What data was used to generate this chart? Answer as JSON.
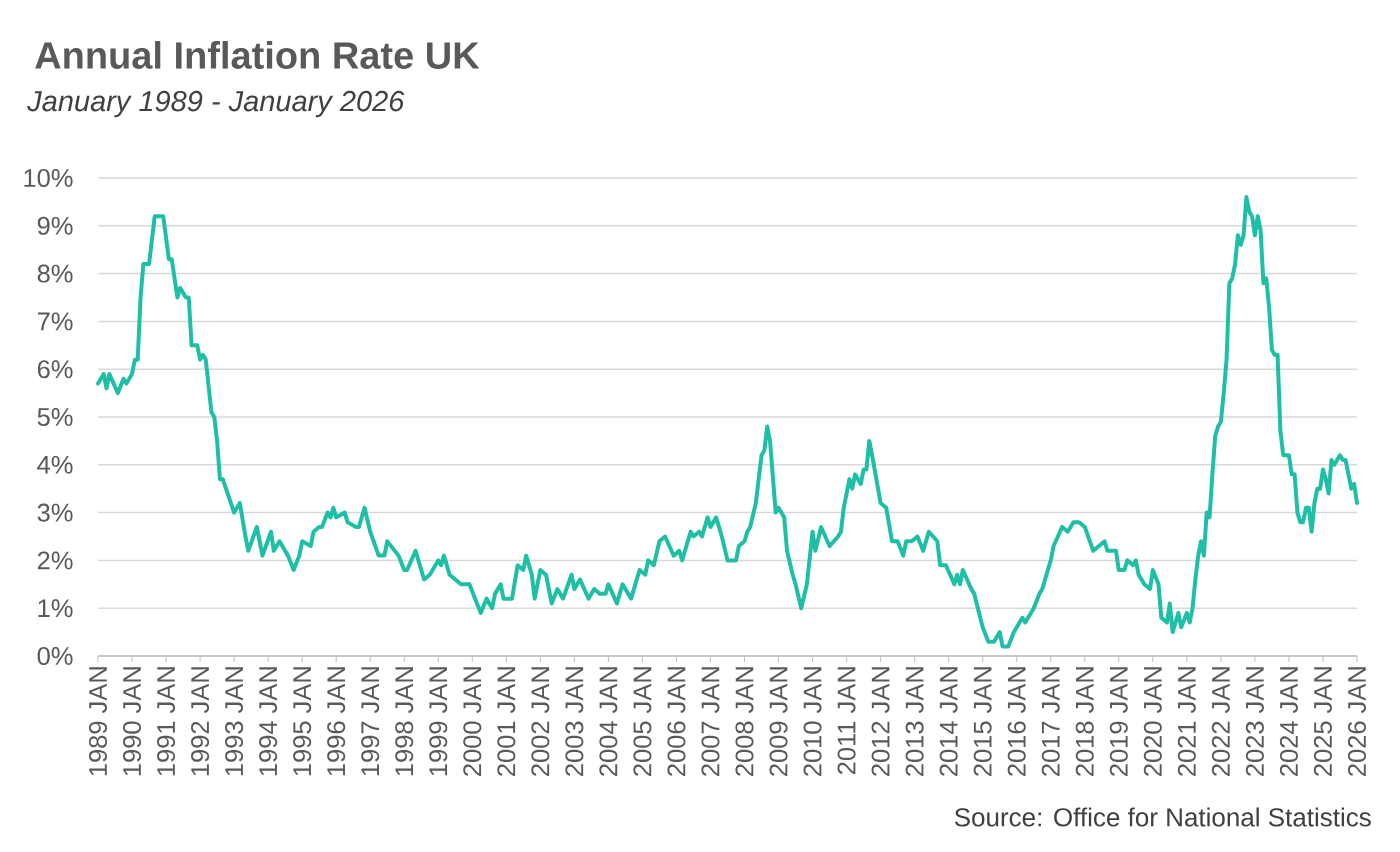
{
  "chart_data": {
    "type": "line",
    "title": "Annual Inflation Rate UK",
    "subtitle": "January 1989 - January 2026",
    "x": [
      "1989-01",
      "1989-03",
      "1989-04",
      "1989-05",
      "1989-08",
      "1989-10",
      "1989-11",
      "1990-01",
      "1990-02",
      "1990-03",
      "1990-04",
      "1990-05",
      "1990-07",
      "1990-09",
      "1990-12",
      "1991-02",
      "1991-03",
      "1991-05",
      "1991-06",
      "1991-08",
      "1991-09",
      "1991-10",
      "1991-12",
      "1992-01",
      "1992-02",
      "1992-03",
      "1992-05",
      "1992-06",
      "1992-07",
      "1992-08",
      "1992-09",
      "1993-01",
      "1993-03",
      "1993-05",
      "1993-06",
      "1993-09",
      "1993-11",
      "1994-02",
      "1994-03",
      "1994-05",
      "1994-08",
      "1994-10",
      "1994-12",
      "1995-01",
      "1995-04",
      "1995-05",
      "1995-07",
      "1995-08",
      "1995-10",
      "1995-11",
      "1995-12",
      "1996-01",
      "1996-04",
      "1996-05",
      "1996-08",
      "1996-09",
      "1996-11",
      "1997-01",
      "1997-04",
      "1997-06",
      "1997-07",
      "1997-11",
      "1998-01",
      "1998-02",
      "1998-05",
      "1998-08",
      "1998-10",
      "1999-01",
      "1999-02",
      "1999-03",
      "1999-05",
      "1999-09",
      "1999-12",
      "2000-02",
      "2000-04",
      "2000-06",
      "2000-08",
      "2000-09",
      "2000-11",
      "2000-12",
      "2001-03",
      "2001-05",
      "2001-07",
      "2001-08",
      "2001-10",
      "2001-11",
      "2002-01",
      "2002-03",
      "2002-05",
      "2002-07",
      "2002-09",
      "2002-12",
      "2003-01",
      "2003-03",
      "2003-06",
      "2003-08",
      "2003-10",
      "2003-12",
      "2004-01",
      "2004-04",
      "2004-06",
      "2004-07",
      "2004-09",
      "2004-12",
      "2005-02",
      "2005-03",
      "2005-05",
      "2005-07",
      "2005-09",
      "2005-12",
      "2006-02",
      "2006-03",
      "2006-06",
      "2006-07",
      "2006-09",
      "2006-10",
      "2006-12",
      "2007-01",
      "2007-03",
      "2007-05",
      "2007-07",
      "2007-10",
      "2007-11",
      "2008-01",
      "2008-02",
      "2008-03",
      "2008-05",
      "2008-07",
      "2008-08",
      "2008-09",
      "2008-10",
      "2008-12",
      "2009-01",
      "2009-03",
      "2009-04",
      "2009-06",
      "2009-07",
      "2009-09",
      "2009-11",
      "2010-01",
      "2010-02",
      "2010-04",
      "2010-07",
      "2010-10",
      "2010-11",
      "2010-12",
      "2011-02",
      "2011-03",
      "2011-04",
      "2011-06",
      "2011-07",
      "2011-08",
      "2011-09",
      "2011-10",
      "2012-01",
      "2012-03",
      "2012-05",
      "2012-07",
      "2012-09",
      "2012-10",
      "2012-12",
      "2013-02",
      "2013-04",
      "2013-06",
      "2013-09",
      "2013-10",
      "2013-12",
      "2014-03",
      "2014-04",
      "2014-05",
      "2014-06",
      "2014-09",
      "2014-10",
      "2015-01",
      "2015-03",
      "2015-05",
      "2015-07",
      "2015-08",
      "2015-10",
      "2015-12",
      "2016-01",
      "2016-03",
      "2016-04",
      "2016-07",
      "2016-09",
      "2016-10",
      "2016-12",
      "2017-01",
      "2017-02",
      "2017-05",
      "2017-07",
      "2017-09",
      "2017-11",
      "2018-01",
      "2018-04",
      "2018-06",
      "2018-08",
      "2018-09",
      "2018-12",
      "2019-01",
      "2019-03",
      "2019-04",
      "2019-06",
      "2019-07",
      "2019-08",
      "2019-10",
      "2019-12",
      "2020-01",
      "2020-03",
      "2020-04",
      "2020-06",
      "2020-07",
      "2020-08",
      "2020-10",
      "2020-11",
      "2021-01",
      "2021-02",
      "2021-03",
      "2021-04",
      "2021-05",
      "2021-06",
      "2021-07",
      "2021-08",
      "2021-09",
      "2021-10",
      "2021-11",
      "2021-12",
      "2022-01",
      "2022-02",
      "2022-03",
      "2022-04",
      "2022-05",
      "2022-06",
      "2022-07",
      "2022-08",
      "2022-09",
      "2022-10",
      "2022-11",
      "2022-12",
      "2023-01",
      "2023-02",
      "2023-03",
      "2023-04",
      "2023-05",
      "2023-06",
      "2023-07",
      "2023-08",
      "2023-09",
      "2023-10",
      "2023-11",
      "2023-12",
      "2024-01",
      "2024-02",
      "2024-03",
      "2024-04",
      "2024-05",
      "2024-06",
      "2024-07",
      "2024-08",
      "2024-09",
      "2024-10",
      "2024-11",
      "2024-12",
      "2025-01",
      "2025-02",
      "2025-03",
      "2025-04",
      "2025-05",
      "2025-06",
      "2025-07",
      "2025-08",
      "2025-09",
      "2025-10",
      "2025-11",
      "2025-12",
      "2026-01"
    ],
    "values": [
      5.7,
      5.9,
      5.6,
      5.9,
      5.5,
      5.8,
      5.7,
      5.9,
      6.2,
      6.2,
      7.5,
      8.2,
      8.2,
      9.2,
      9.2,
      8.3,
      8.3,
      7.5,
      7.7,
      7.5,
      7.5,
      6.5,
      6.5,
      6.2,
      6.3,
      6.2,
      5.1,
      5.0,
      4.5,
      3.7,
      3.7,
      3.0,
      3.2,
      2.5,
      2.2,
      2.7,
      2.1,
      2.6,
      2.2,
      2.4,
      2.1,
      1.8,
      2.1,
      2.4,
      2.3,
      2.6,
      2.7,
      2.7,
      3.0,
      2.9,
      3.1,
      2.9,
      3.0,
      2.8,
      2.7,
      2.7,
      3.1,
      2.6,
      2.1,
      2.1,
      2.4,
      2.1,
      1.8,
      1.8,
      2.2,
      1.6,
      1.7,
      2.0,
      1.9,
      2.1,
      1.7,
      1.5,
      1.5,
      1.2,
      0.9,
      1.2,
      1.0,
      1.3,
      1.5,
      1.2,
      1.2,
      1.9,
      1.8,
      2.1,
      1.7,
      1.2,
      1.8,
      1.7,
      1.1,
      1.4,
      1.2,
      1.7,
      1.4,
      1.6,
      1.2,
      1.4,
      1.3,
      1.3,
      1.5,
      1.1,
      1.5,
      1.4,
      1.2,
      1.8,
      1.7,
      2.0,
      1.9,
      2.4,
      2.5,
      2.1,
      2.2,
      2.0,
      2.6,
      2.5,
      2.6,
      2.5,
      2.9,
      2.7,
      2.9,
      2.5,
      2.0,
      2.0,
      2.3,
      2.4,
      2.6,
      2.7,
      3.2,
      4.2,
      4.3,
      4.8,
      4.5,
      3.0,
      3.1,
      2.9,
      2.2,
      1.7,
      1.5,
      1.0,
      1.5,
      2.6,
      2.2,
      2.7,
      2.3,
      2.5,
      2.6,
      3.1,
      3.7,
      3.5,
      3.8,
      3.6,
      3.9,
      3.9,
      4.5,
      4.2,
      3.2,
      3.1,
      2.4,
      2.4,
      2.1,
      2.4,
      2.4,
      2.5,
      2.2,
      2.6,
      2.4,
      1.9,
      1.9,
      1.5,
      1.7,
      1.5,
      1.8,
      1.4,
      1.3,
      0.6,
      0.3,
      0.3,
      0.5,
      0.2,
      0.2,
      0.5,
      0.6,
      0.8,
      0.7,
      1.0,
      1.3,
      1.4,
      1.8,
      2.0,
      2.3,
      2.7,
      2.6,
      2.8,
      2.8,
      2.7,
      2.2,
      2.3,
      2.4,
      2.2,
      2.2,
      1.8,
      1.8,
      2.0,
      1.9,
      2.0,
      1.7,
      1.5,
      1.4,
      1.8,
      1.5,
      0.8,
      0.7,
      1.1,
      0.5,
      0.9,
      0.6,
      0.9,
      0.7,
      1.0,
      1.6,
      2.1,
      2.4,
      2.1,
      3.0,
      2.9,
      3.8,
      4.6,
      4.8,
      4.9,
      5.5,
      6.2,
      7.8,
      7.9,
      8.2,
      8.8,
      8.6,
      8.8,
      9.6,
      9.3,
      9.2,
      8.8,
      9.2,
      8.9,
      7.8,
      7.9,
      7.3,
      6.4,
      6.3,
      6.3,
      4.7,
      4.2,
      4.2,
      4.2,
      3.8,
      3.8,
      3.0,
      2.8,
      2.8,
      3.1,
      3.1,
      2.6,
      3.2,
      3.5,
      3.5,
      3.9,
      3.7,
      3.4,
      4.1,
      4.0,
      4.1,
      4.2,
      4.1,
      4.1,
      3.8,
      3.5,
      3.6,
      3.2
    ],
    "color": "#1fbfa5",
    "xlim": [
      "1989-01",
      "2026-01"
    ],
    "xticks": [
      {
        "value": "1989-01",
        "label": "1989 JAN"
      },
      {
        "value": "1990-01",
        "label": "1990 JAN"
      },
      {
        "value": "1991-01",
        "label": "1991 JAN"
      },
      {
        "value": "1992-01",
        "label": "1992 JAN"
      },
      {
        "value": "1993-01",
        "label": "1993 JAN"
      },
      {
        "value": "1994-01",
        "label": "1994 JAN"
      },
      {
        "value": "1995-01",
        "label": "1995 JAN"
      },
      {
        "value": "1996-01",
        "label": "1996 JAN"
      },
      {
        "value": "1997-01",
        "label": "1997 JAN"
      },
      {
        "value": "1998-01",
        "label": "1998 JAN"
      },
      {
        "value": "1999-01",
        "label": "1999 JAN"
      },
      {
        "value": "2000-01",
        "label": "2000 JAN"
      },
      {
        "value": "2001-01",
        "label": "2001 JAN"
      },
      {
        "value": "2002-01",
        "label": "2002 JAN"
      },
      {
        "value": "2003-01",
        "label": "2003 JAN"
      },
      {
        "value": "2004-01",
        "label": "2004 JAN"
      },
      {
        "value": "2005-01",
        "label": "2005 JAN"
      },
      {
        "value": "2006-01",
        "label": "2006 JAN"
      },
      {
        "value": "2007-01",
        "label": "2007 JAN"
      },
      {
        "value": "2008-01",
        "label": "2008 JAN"
      },
      {
        "value": "2009-01",
        "label": "2009 JAN"
      },
      {
        "value": "2010-01",
        "label": "2010 JAN"
      },
      {
        "value": "2011-01",
        "label": "2011 JAN"
      },
      {
        "value": "2012-01",
        "label": "2012 JAN"
      },
      {
        "value": "2013-01",
        "label": "2013 JAN"
      },
      {
        "value": "2014-01",
        "label": "2014 JAN"
      },
      {
        "value": "2015-01",
        "label": "2015 JAN"
      },
      {
        "value": "2016-01",
        "label": "2016 JAN"
      },
      {
        "value": "2017-01",
        "label": "2017 JAN"
      },
      {
        "value": "2018-01",
        "label": "2018 JAN"
      },
      {
        "value": "2019-01",
        "label": "2019 JAN"
      },
      {
        "value": "2020-01",
        "label": "2020 JAN"
      },
      {
        "value": "2021-01",
        "label": "2021 JAN"
      },
      {
        "value": "2022-01",
        "label": "2022 JAN"
      },
      {
        "value": "2023-01",
        "label": "2023 JAN"
      },
      {
        "value": "2024-01",
        "label": "2024 JAN"
      },
      {
        "value": "2025-01",
        "label": "2025 JAN"
      },
      {
        "value": "2026-01",
        "label": "2026 JAN"
      }
    ],
    "ylim": [
      0,
      10
    ],
    "yticks": [
      {
        "value": 0,
        "label": "0%"
      },
      {
        "value": 1,
        "label": "1%"
      },
      {
        "value": 2,
        "label": "2%"
      },
      {
        "value": 3,
        "label": "3%"
      },
      {
        "value": 4,
        "label": "4%"
      },
      {
        "value": 5,
        "label": "5%"
      },
      {
        "value": 6,
        "label": "6%"
      },
      {
        "value": 7,
        "label": "7%"
      },
      {
        "value": 8,
        "label": "8%"
      },
      {
        "value": 9,
        "label": "9%"
      },
      {
        "value": 10,
        "label": "10%"
      }
    ],
    "grid": "y",
    "annotations": [
      "Source: Office for National Statistics"
    ]
  }
}
